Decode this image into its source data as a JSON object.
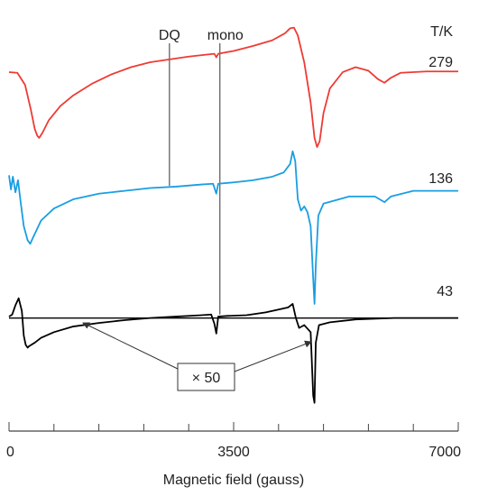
{
  "chart_data": {
    "type": "line",
    "xlabel": "Magnetic field (gauss)",
    "xlim": [
      0,
      7000
    ],
    "ylim": [
      -1.6,
      4.45
    ],
    "x_ticks_labeled": [
      0,
      3500,
      7000
    ],
    "x_ticks_minor": [
      700,
      1400,
      2100,
      2800,
      4200,
      4900,
      5600,
      6300
    ],
    "grid": false,
    "temperature_header": "T/K",
    "markers": [
      {
        "label": "DQ",
        "x": 2500
      },
      {
        "label": "mono",
        "x": 3230
      }
    ],
    "inset_label": "× 50",
    "series": [
      {
        "name": "279",
        "color": "#ee3b33",
        "points": [
          [
            0,
            3.48
          ],
          [
            130,
            3.47
          ],
          [
            250,
            3.3
          ],
          [
            340,
            2.95
          ],
          [
            400,
            2.68
          ],
          [
            440,
            2.58
          ],
          [
            470,
            2.55
          ],
          [
            520,
            2.62
          ],
          [
            620,
            2.8
          ],
          [
            800,
            3.0
          ],
          [
            1000,
            3.15
          ],
          [
            1300,
            3.32
          ],
          [
            1600,
            3.45
          ],
          [
            1900,
            3.55
          ],
          [
            2200,
            3.62
          ],
          [
            2500,
            3.66
          ],
          [
            2800,
            3.7
          ],
          [
            3100,
            3.73
          ],
          [
            3200,
            3.74
          ],
          [
            3230,
            3.69
          ],
          [
            3260,
            3.74
          ],
          [
            3500,
            3.78
          ],
          [
            3800,
            3.85
          ],
          [
            4100,
            3.93
          ],
          [
            4300,
            4.03
          ],
          [
            4380,
            4.1
          ],
          [
            4440,
            4.11
          ],
          [
            4500,
            4.0
          ],
          [
            4600,
            3.62
          ],
          [
            4700,
            3.05
          ],
          [
            4760,
            2.55
          ],
          [
            4800,
            2.42
          ],
          [
            4840,
            2.5
          ],
          [
            4900,
            2.9
          ],
          [
            5000,
            3.25
          ],
          [
            5200,
            3.48
          ],
          [
            5400,
            3.55
          ],
          [
            5600,
            3.5
          ],
          [
            5750,
            3.38
          ],
          [
            5850,
            3.33
          ],
          [
            5950,
            3.4
          ],
          [
            6100,
            3.47
          ],
          [
            6500,
            3.49
          ],
          [
            7000,
            3.49
          ]
        ]
      },
      {
        "name": "136",
        "color": "#1a9ee2",
        "points": [
          [
            0,
            2.02
          ],
          [
            30,
            1.82
          ],
          [
            60,
            2.0
          ],
          [
            100,
            1.78
          ],
          [
            140,
            1.95
          ],
          [
            180,
            1.65
          ],
          [
            230,
            1.3
          ],
          [
            290,
            1.1
          ],
          [
            330,
            1.05
          ],
          [
            380,
            1.15
          ],
          [
            500,
            1.38
          ],
          [
            700,
            1.55
          ],
          [
            1000,
            1.68
          ],
          [
            1400,
            1.76
          ],
          [
            1800,
            1.8
          ],
          [
            2200,
            1.84
          ],
          [
            2600,
            1.86
          ],
          [
            3000,
            1.89
          ],
          [
            3180,
            1.9
          ],
          [
            3230,
            1.76
          ],
          [
            3260,
            1.9
          ],
          [
            3500,
            1.92
          ],
          [
            3800,
            1.95
          ],
          [
            4100,
            2.0
          ],
          [
            4280,
            2.06
          ],
          [
            4380,
            2.18
          ],
          [
            4420,
            2.36
          ],
          [
            4460,
            2.22
          ],
          [
            4500,
            1.68
          ],
          [
            4550,
            1.52
          ],
          [
            4600,
            1.58
          ],
          [
            4650,
            1.5
          ],
          [
            4700,
            1.3
          ],
          [
            4740,
            0.55
          ],
          [
            4760,
            0.2
          ],
          [
            4780,
            0.75
          ],
          [
            4820,
            1.45
          ],
          [
            4900,
            1.62
          ],
          [
            5300,
            1.72
          ],
          [
            5700,
            1.72
          ],
          [
            5850,
            1.64
          ],
          [
            5950,
            1.72
          ],
          [
            6300,
            1.8
          ],
          [
            7000,
            1.8
          ]
        ]
      },
      {
        "name": "43",
        "color": "#000000",
        "points": [
          [
            0,
            0.02
          ],
          [
            50,
            0.05
          ],
          [
            100,
            0.18
          ],
          [
            150,
            0.28
          ],
          [
            200,
            0.1
          ],
          [
            230,
            -0.25
          ],
          [
            260,
            -0.38
          ],
          [
            290,
            -0.42
          ],
          [
            310,
            -0.4
          ],
          [
            400,
            -0.35
          ],
          [
            500,
            -0.28
          ],
          [
            700,
            -0.2
          ],
          [
            1000,
            -0.12
          ],
          [
            1400,
            -0.07
          ],
          [
            1800,
            -0.03
          ],
          [
            2200,
            0.0
          ],
          [
            2600,
            0.02
          ],
          [
            3000,
            0.04
          ],
          [
            3150,
            0.05
          ],
          [
            3200,
            -0.08
          ],
          [
            3230,
            -0.22
          ],
          [
            3260,
            0.02
          ],
          [
            3400,
            0.03
          ],
          [
            3700,
            0.04
          ],
          [
            4000,
            0.08
          ],
          [
            4200,
            0.12
          ],
          [
            4350,
            0.15
          ],
          [
            4420,
            0.2
          ],
          [
            4470,
            0.0
          ],
          [
            4520,
            -0.14
          ],
          [
            4600,
            -0.1
          ],
          [
            4700,
            -0.2
          ],
          [
            4740,
            -1.1
          ],
          [
            4760,
            -1.2
          ],
          [
            4780,
            -0.35
          ],
          [
            4830,
            -0.1
          ],
          [
            5000,
            -0.06
          ],
          [
            5400,
            -0.02
          ],
          [
            6000,
            0.0
          ],
          [
            7000,
            0.0
          ]
        ]
      }
    ],
    "baseline_x50": {
      "color": "#000000",
      "points": [
        [
          0,
          0.0
        ],
        [
          7000,
          0.0
        ]
      ]
    }
  }
}
